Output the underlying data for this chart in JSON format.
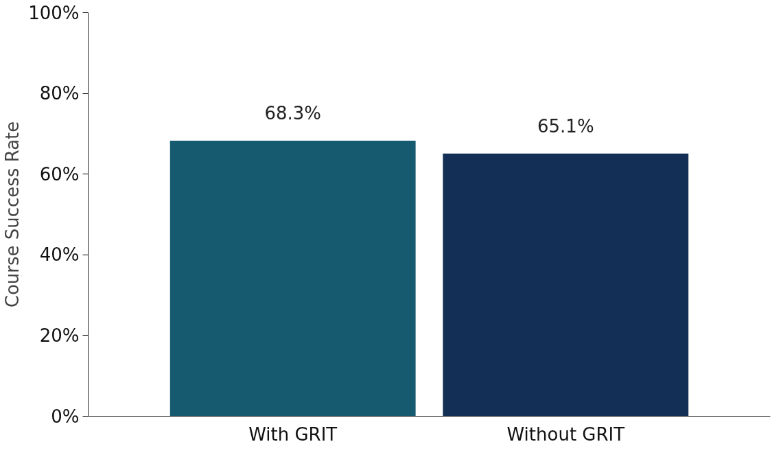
{
  "chart_data": {
    "type": "bar",
    "ylabel": "Course Success Rate",
    "categories": [
      "With GRIT",
      "Without GRIT"
    ],
    "values": [
      68.3,
      65.1
    ],
    "colors": [
      "#155a6e",
      "#132f55"
    ],
    "value_labels": [
      "68.3%",
      "65.1%"
    ],
    "ylim": [
      0,
      100
    ],
    "yticks": [
      {
        "value": 0,
        "label": "0%"
      },
      {
        "value": 20,
        "label": "20%"
      },
      {
        "value": 40,
        "label": "40%"
      },
      {
        "value": 60,
        "label": "60%"
      },
      {
        "value": 80,
        "label": "80%"
      },
      {
        "value": 100,
        "label": "100%"
      }
    ],
    "grid": false
  }
}
